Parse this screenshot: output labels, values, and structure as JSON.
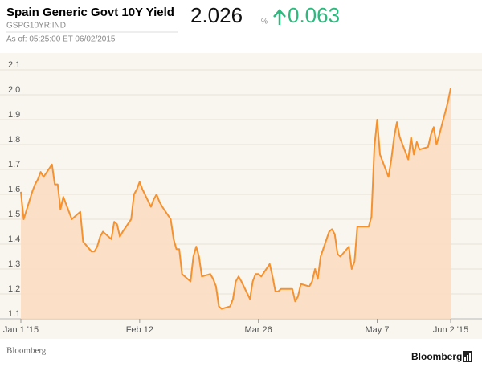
{
  "chart_data": {
    "type": "line",
    "title": "Spain Generic Govt 10Y Yield",
    "subtitle": "GSPG10YR:IND",
    "as_of": "As of: 05:25:00 ET 06/02/2015",
    "price": 2.026,
    "unit": "%",
    "change": 0.063,
    "source": "Bloomberg",
    "logo": "Bloomberg",
    "color": "#f5922f",
    "fill_color": "#fbdcc0",
    "x": [
      "2015-01-01",
      "2015-01-02",
      "2015-01-05",
      "2015-01-06",
      "2015-01-07",
      "2015-01-08",
      "2015-01-09",
      "2015-01-12",
      "2015-01-13",
      "2015-01-14",
      "2015-01-15",
      "2015-01-16",
      "2015-01-19",
      "2015-01-20",
      "2015-01-21",
      "2015-01-22",
      "2015-01-23",
      "2015-01-26",
      "2015-01-27",
      "2015-01-28",
      "2015-01-29",
      "2015-01-30",
      "2015-02-02",
      "2015-02-03",
      "2015-02-04",
      "2015-02-05",
      "2015-02-06",
      "2015-02-09",
      "2015-02-10",
      "2015-02-11",
      "2015-02-12",
      "2015-02-13",
      "2015-02-16",
      "2015-02-17",
      "2015-02-18",
      "2015-02-19",
      "2015-02-20",
      "2015-02-23",
      "2015-02-24",
      "2015-02-25",
      "2015-02-26",
      "2015-02-27",
      "2015-03-02",
      "2015-03-03",
      "2015-03-04",
      "2015-03-05",
      "2015-03-06",
      "2015-03-09",
      "2015-03-10",
      "2015-03-11",
      "2015-03-12",
      "2015-03-13",
      "2015-03-16",
      "2015-03-17",
      "2015-03-18",
      "2015-03-19",
      "2015-03-20",
      "2015-03-23",
      "2015-03-24",
      "2015-03-25",
      "2015-03-26",
      "2015-03-27",
      "2015-03-30",
      "2015-03-31",
      "2015-04-01",
      "2015-04-02",
      "2015-04-03",
      "2015-04-06",
      "2015-04-07",
      "2015-04-08",
      "2015-04-09",
      "2015-04-10",
      "2015-04-13",
      "2015-04-14",
      "2015-04-15",
      "2015-04-16",
      "2015-04-17",
      "2015-04-20",
      "2015-04-21",
      "2015-04-22",
      "2015-04-23",
      "2015-04-24",
      "2015-04-27",
      "2015-04-28",
      "2015-04-29",
      "2015-04-30",
      "2015-05-01",
      "2015-05-04",
      "2015-05-05",
      "2015-05-06",
      "2015-05-07",
      "2015-05-08",
      "2015-05-11",
      "2015-05-12",
      "2015-05-13",
      "2015-05-14",
      "2015-05-15",
      "2015-05-18",
      "2015-05-19",
      "2015-05-20",
      "2015-05-21",
      "2015-05-22",
      "2015-05-25",
      "2015-05-26",
      "2015-05-27",
      "2015-05-28",
      "2015-05-29",
      "2015-06-01",
      "2015-06-02"
    ],
    "values": [
      1.61,
      1.5,
      1.61,
      1.64,
      1.66,
      1.69,
      1.67,
      1.72,
      1.64,
      1.64,
      1.54,
      1.59,
      1.5,
      1.51,
      1.52,
      1.53,
      1.41,
      1.37,
      1.37,
      1.39,
      1.43,
      1.45,
      1.42,
      1.49,
      1.48,
      1.43,
      1.45,
      1.5,
      1.6,
      1.62,
      1.65,
      1.62,
      1.55,
      1.58,
      1.6,
      1.57,
      1.55,
      1.5,
      1.42,
      1.38,
      1.38,
      1.28,
      1.25,
      1.35,
      1.39,
      1.35,
      1.27,
      1.28,
      1.26,
      1.23,
      1.15,
      1.14,
      1.15,
      1.18,
      1.25,
      1.27,
      1.25,
      1.18,
      1.25,
      1.28,
      1.28,
      1.27,
      1.32,
      1.27,
      1.21,
      1.21,
      1.22,
      1.22,
      1.22,
      1.17,
      1.19,
      1.24,
      1.23,
      1.25,
      1.3,
      1.26,
      1.35,
      1.45,
      1.46,
      1.44,
      1.36,
      1.35,
      1.39,
      1.3,
      1.33,
      1.47,
      1.47,
      1.47,
      1.51,
      1.79,
      1.9,
      1.76,
      1.67,
      1.74,
      1.83,
      1.89,
      1.83,
      1.74,
      1.83,
      1.76,
      1.81,
      1.78,
      1.79,
      1.84,
      1.87,
      1.8,
      1.84,
      1.97,
      2.026
    ],
    "xlim": [
      "2015-01-01",
      "2015-06-02"
    ],
    "xticks": [
      {
        "value": "2015-01-01",
        "label": "Jan 1 '15"
      },
      {
        "value": "2015-02-12",
        "label": "Feb 12"
      },
      {
        "value": "2015-03-26",
        "label": "Mar 26"
      },
      {
        "value": "2015-05-07",
        "label": "May 7"
      },
      {
        "value": "2015-06-02",
        "label": "Jun 2 '15"
      }
    ],
    "ylim": [
      1.1,
      2.1
    ],
    "yticks": [
      1.1,
      1.2,
      1.3,
      1.4,
      1.5,
      1.6,
      1.7,
      1.8,
      1.9,
      {
        "value": 2,
        "label": "2.0"
      },
      2.1
    ],
    "grid": true
  }
}
